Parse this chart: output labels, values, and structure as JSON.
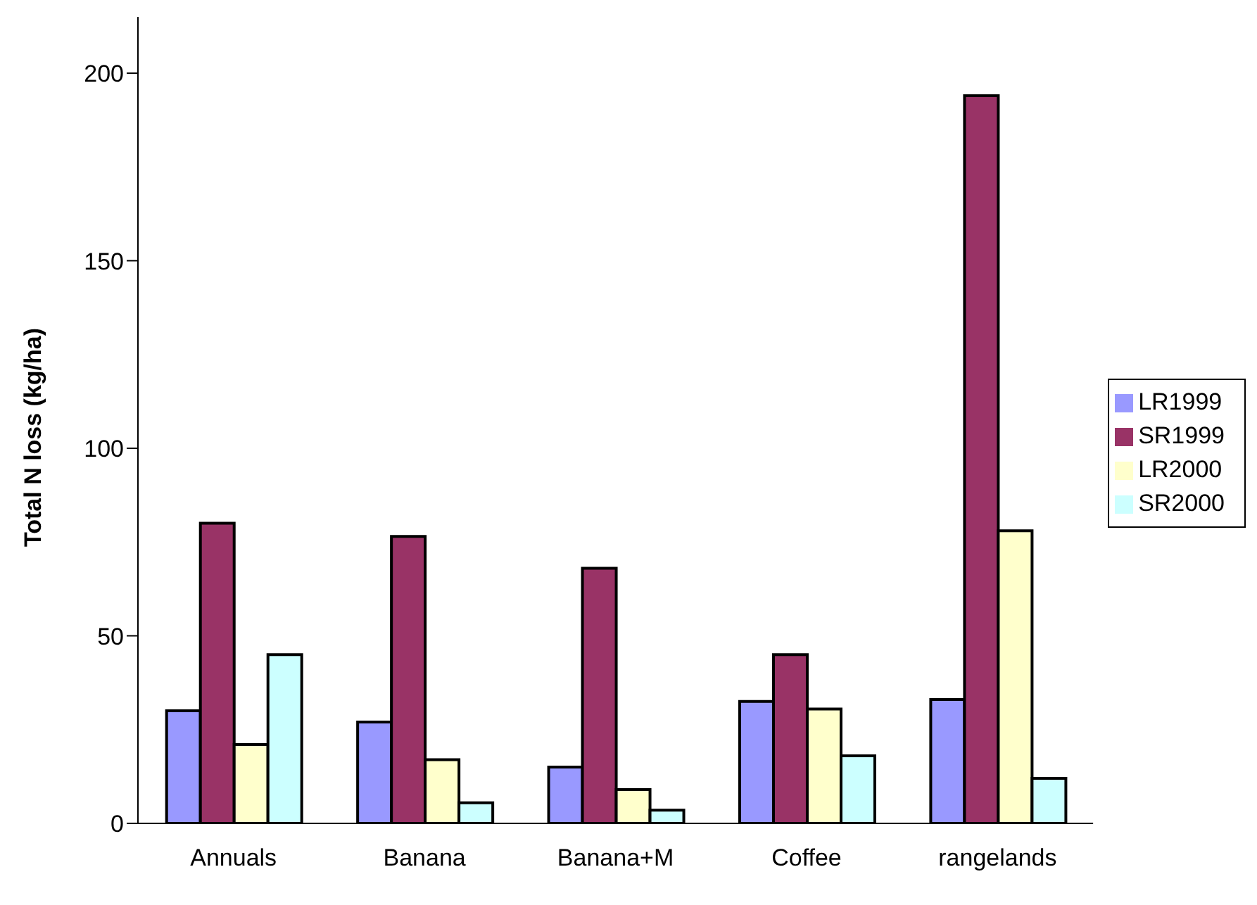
{
  "chart_data": {
    "type": "bar",
    "ylabel": "Total N loss (kg/ha)",
    "categories": [
      "Annuals",
      "Banana",
      "Banana+M",
      "Coffee",
      "rangelands"
    ],
    "series": [
      {
        "name": "LR1999",
        "color": "#9999ff",
        "values": [
          30,
          27,
          15,
          32.5,
          33
        ]
      },
      {
        "name": "SR1999",
        "color": "#993366",
        "values": [
          80,
          76.5,
          68,
          45,
          194
        ]
      },
      {
        "name": "LR2000",
        "color": "#ffffcc",
        "values": [
          21,
          17,
          9,
          30.5,
          78
        ]
      },
      {
        "name": "SR2000",
        "color": "#ccffff",
        "values": [
          45,
          5.5,
          3.5,
          18,
          12
        ]
      }
    ],
    "ylim": [
      0,
      215
    ],
    "yticks": [
      0,
      50,
      100,
      150,
      200
    ],
    "grid": false,
    "legend": "right"
  }
}
